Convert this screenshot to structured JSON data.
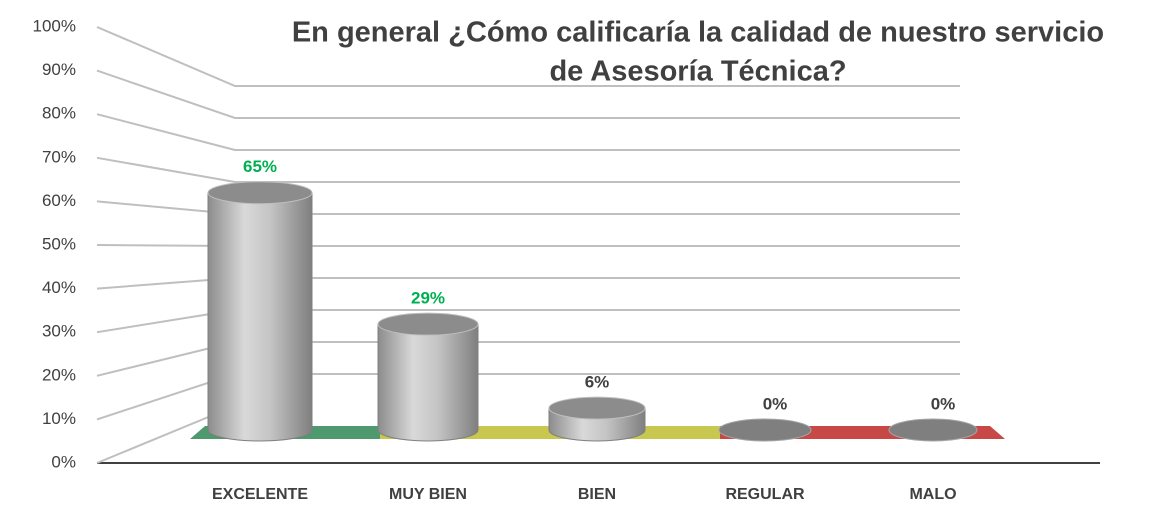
{
  "chart_data": {
    "type": "bar3d",
    "title": "En general ¿Cómo calificaría la calidad de nuestro servicio de Asesoría Técnica?",
    "categories": [
      "EXCELENTE",
      "MUY BIEN",
      "BIEN",
      "REGULAR",
      "MALO"
    ],
    "values": [
      65,
      29,
      6,
      0,
      0
    ],
    "value_labels": [
      "65%",
      "29%",
      "6%",
      "0%",
      "0%"
    ],
    "value_label_colors": [
      "#00b050",
      "#00b050",
      "#404040",
      "#404040",
      "#404040"
    ],
    "color": "#a6a6a6",
    "ylim": [
      0,
      100
    ],
    "yticks": [
      {
        "value": 0,
        "label": "0%"
      },
      {
        "value": 10,
        "label": "10%"
      },
      {
        "value": 20,
        "label": "20%"
      },
      {
        "value": 30,
        "label": "30%"
      },
      {
        "value": 40,
        "label": "40%"
      },
      {
        "value": 50,
        "label": "50%"
      },
      {
        "value": 60,
        "label": "60%"
      },
      {
        "value": 70,
        "label": "70%"
      },
      {
        "value": 80,
        "label": "80%"
      },
      {
        "value": 90,
        "label": "90%"
      },
      {
        "value": 100,
        "label": "100%"
      }
    ],
    "grid": true
  }
}
